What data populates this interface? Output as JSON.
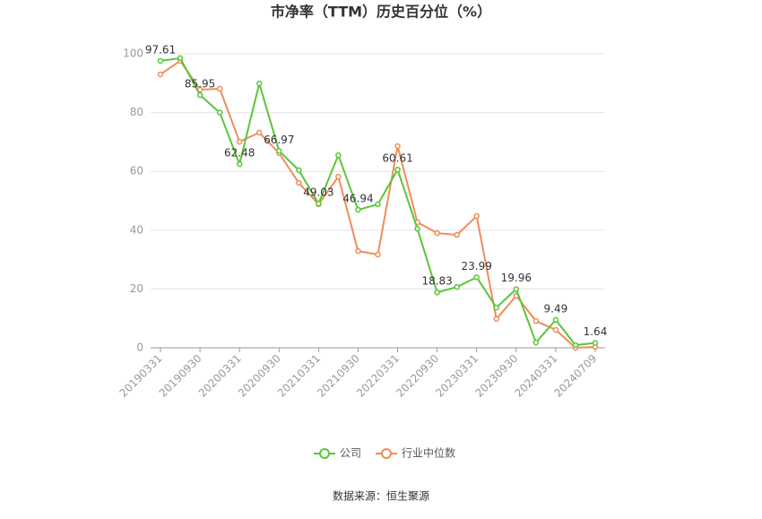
{
  "chart_data": {
    "type": "line",
    "title": "市净率（TTM）历史百分位（%）",
    "source": "数据来源：恒生聚源",
    "categories": [
      "20190331",
      null,
      "20190930",
      null,
      "20200331",
      null,
      "20200930",
      null,
      "20210331",
      null,
      "20210930",
      null,
      "20220331",
      null,
      "20220930",
      null,
      "20230331",
      null,
      "20230930",
      null,
      "20240331",
      null,
      "20240709"
    ],
    "series": [
      {
        "name": "公司",
        "color": "#5ac53a",
        "values": [
          97.61,
          98.5,
          85.95,
          80,
          62.48,
          89.9,
          66.97,
          60.4,
          49.03,
          65.5,
          46.94,
          48.8,
          60.61,
          40.5,
          18.83,
          20.7,
          23.99,
          13.7,
          19.96,
          1.8,
          9.49,
          0.9,
          1.64
        ],
        "value_labels": [
          "97.61",
          null,
          "85.95",
          null,
          "62.48",
          null,
          "66.97",
          null,
          "49.03",
          null,
          "46.94",
          null,
          "60.61",
          null,
          "18.83",
          null,
          "23.99",
          null,
          "19.96",
          null,
          "9.49",
          null,
          "1.64"
        ]
      },
      {
        "name": "行业中位数",
        "color": "#f08c5a",
        "values": [
          93,
          97.6,
          87.8,
          88.1,
          70.1,
          73.2,
          66.2,
          56.1,
          48.8,
          58.2,
          32.9,
          31.7,
          68.6,
          42.7,
          39,
          38.4,
          44.8,
          9.8,
          17.7,
          9.1,
          6.1,
          0,
          0.3
        ]
      }
    ],
    "ylim": [
      0,
      100
    ],
    "yticks": [
      0,
      20,
      40,
      60,
      80,
      100
    ],
    "grid": true,
    "legend": "bottom"
  }
}
